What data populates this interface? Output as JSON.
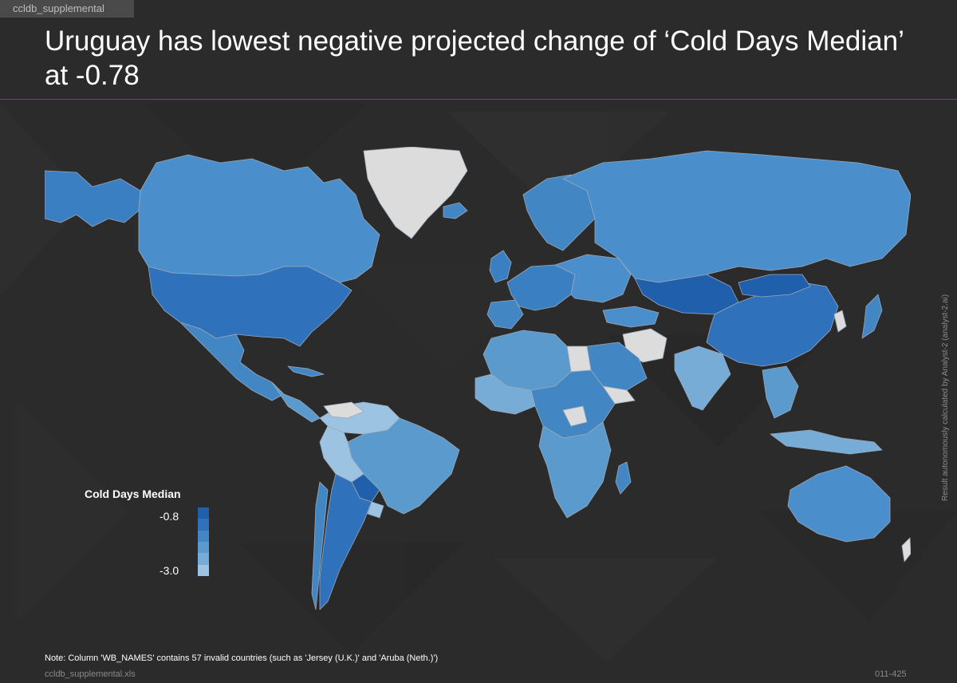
{
  "header": {
    "tag": "ccldb_supplemental",
    "title": "Uruguay has lowest negative projected change of ‘Cold Days Median’ at -0.78"
  },
  "legend": {
    "title": "Cold Days Median",
    "max_label": "-0.8",
    "min_label": "-3.0",
    "colors": [
      "#1f5fab",
      "#2f72bb",
      "#4287c4",
      "#5a9acd",
      "#77acd6",
      "#9cc4e2"
    ]
  },
  "colors": {
    "background": "#2b2b2b",
    "land_no_data": "#dcdcdc",
    "country_border": "#9aa8b8",
    "title_rule": "#3d56a6"
  },
  "side_note": "Result autonomously calculated by Analyst-2 (analyst-2.ai)",
  "note": "Note: Column 'WB_NAMES' contains 57 invalid countries (such as 'Jersey (U.K.)' and 'Aruba (Neth.)')",
  "footer": {
    "file": "ccldb_supplemental.xls",
    "page": "011-425"
  }
}
